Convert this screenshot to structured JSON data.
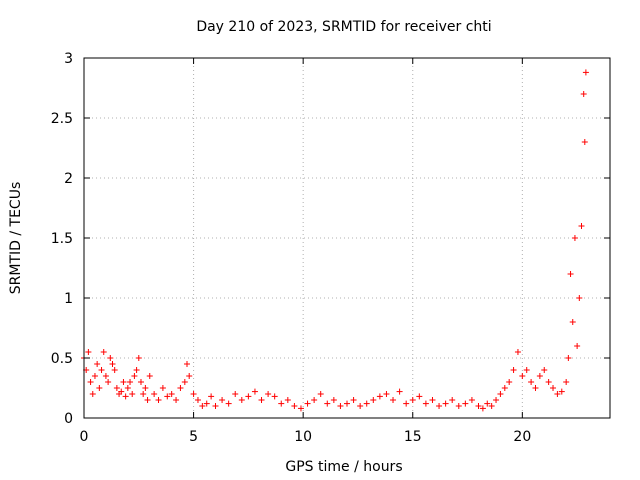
{
  "chart_data": {
    "type": "scatter",
    "title": "Day 210 of 2023, SRMTID for receiver chti",
    "xlabel": "GPS time / hours",
    "ylabel": "SRMTID / TECUs",
    "xlim": [
      0,
      24
    ],
    "ylim": [
      0,
      3
    ],
    "x_ticks": [
      0,
      5,
      10,
      15,
      20
    ],
    "y_ticks": [
      0,
      0.5,
      1,
      1.5,
      2,
      2.5,
      3
    ],
    "grid": true,
    "marker": "+",
    "series": [
      {
        "name": "SRMTID",
        "color": "#ff0000",
        "x": [
          0.0,
          0.1,
          0.2,
          0.3,
          0.4,
          0.5,
          0.6,
          0.7,
          0.8,
          0.9,
          1.0,
          1.1,
          1.2,
          1.3,
          1.4,
          1.5,
          1.6,
          1.7,
          1.8,
          1.9,
          2.0,
          2.1,
          2.2,
          2.3,
          2.4,
          2.5,
          2.6,
          2.7,
          2.8,
          2.9,
          3.0,
          3.2,
          3.4,
          3.6,
          3.8,
          4.0,
          4.2,
          4.4,
          4.6,
          4.7,
          4.8,
          5.0,
          5.2,
          5.4,
          5.6,
          5.8,
          6.0,
          6.3,
          6.6,
          6.9,
          7.2,
          7.5,
          7.8,
          8.1,
          8.4,
          8.7,
          9.0,
          9.3,
          9.6,
          9.9,
          10.2,
          10.5,
          10.8,
          11.1,
          11.4,
          11.7,
          12.0,
          12.3,
          12.6,
          12.9,
          13.2,
          13.5,
          13.8,
          14.1,
          14.4,
          14.7,
          15.0,
          15.3,
          15.6,
          15.9,
          16.2,
          16.5,
          16.8,
          17.1,
          17.4,
          17.7,
          18.0,
          18.2,
          18.4,
          18.6,
          18.8,
          19.0,
          19.2,
          19.4,
          19.6,
          19.8,
          20.0,
          20.2,
          20.4,
          20.6,
          20.8,
          21.0,
          21.2,
          21.4,
          21.6,
          21.8,
          22.0,
          22.1,
          22.2,
          22.3,
          22.4,
          22.5,
          22.6,
          22.7,
          22.8,
          22.85,
          22.9
        ],
        "values": [
          0.5,
          0.4,
          0.55,
          0.3,
          0.2,
          0.35,
          0.45,
          0.25,
          0.4,
          0.55,
          0.35,
          0.3,
          0.5,
          0.45,
          0.4,
          0.25,
          0.2,
          0.22,
          0.3,
          0.18,
          0.25,
          0.3,
          0.2,
          0.35,
          0.4,
          0.5,
          0.3,
          0.2,
          0.25,
          0.15,
          0.35,
          0.2,
          0.15,
          0.25,
          0.18,
          0.2,
          0.15,
          0.25,
          0.3,
          0.45,
          0.35,
          0.2,
          0.15,
          0.1,
          0.12,
          0.18,
          0.1,
          0.15,
          0.12,
          0.2,
          0.15,
          0.18,
          0.22,
          0.15,
          0.2,
          0.18,
          0.12,
          0.15,
          0.1,
          0.08,
          0.12,
          0.15,
          0.2,
          0.12,
          0.15,
          0.1,
          0.12,
          0.15,
          0.1,
          0.12,
          0.15,
          0.18,
          0.2,
          0.15,
          0.22,
          0.12,
          0.15,
          0.18,
          0.12,
          0.15,
          0.1,
          0.12,
          0.15,
          0.1,
          0.12,
          0.15,
          0.1,
          0.08,
          0.12,
          0.1,
          0.15,
          0.2,
          0.25,
          0.3,
          0.4,
          0.55,
          0.35,
          0.4,
          0.3,
          0.25,
          0.35,
          0.4,
          0.3,
          0.25,
          0.2,
          0.22,
          0.3,
          0.5,
          1.2,
          0.8,
          1.5,
          0.6,
          1.0,
          1.6,
          2.7,
          2.3,
          2.88
        ]
      }
    ]
  }
}
